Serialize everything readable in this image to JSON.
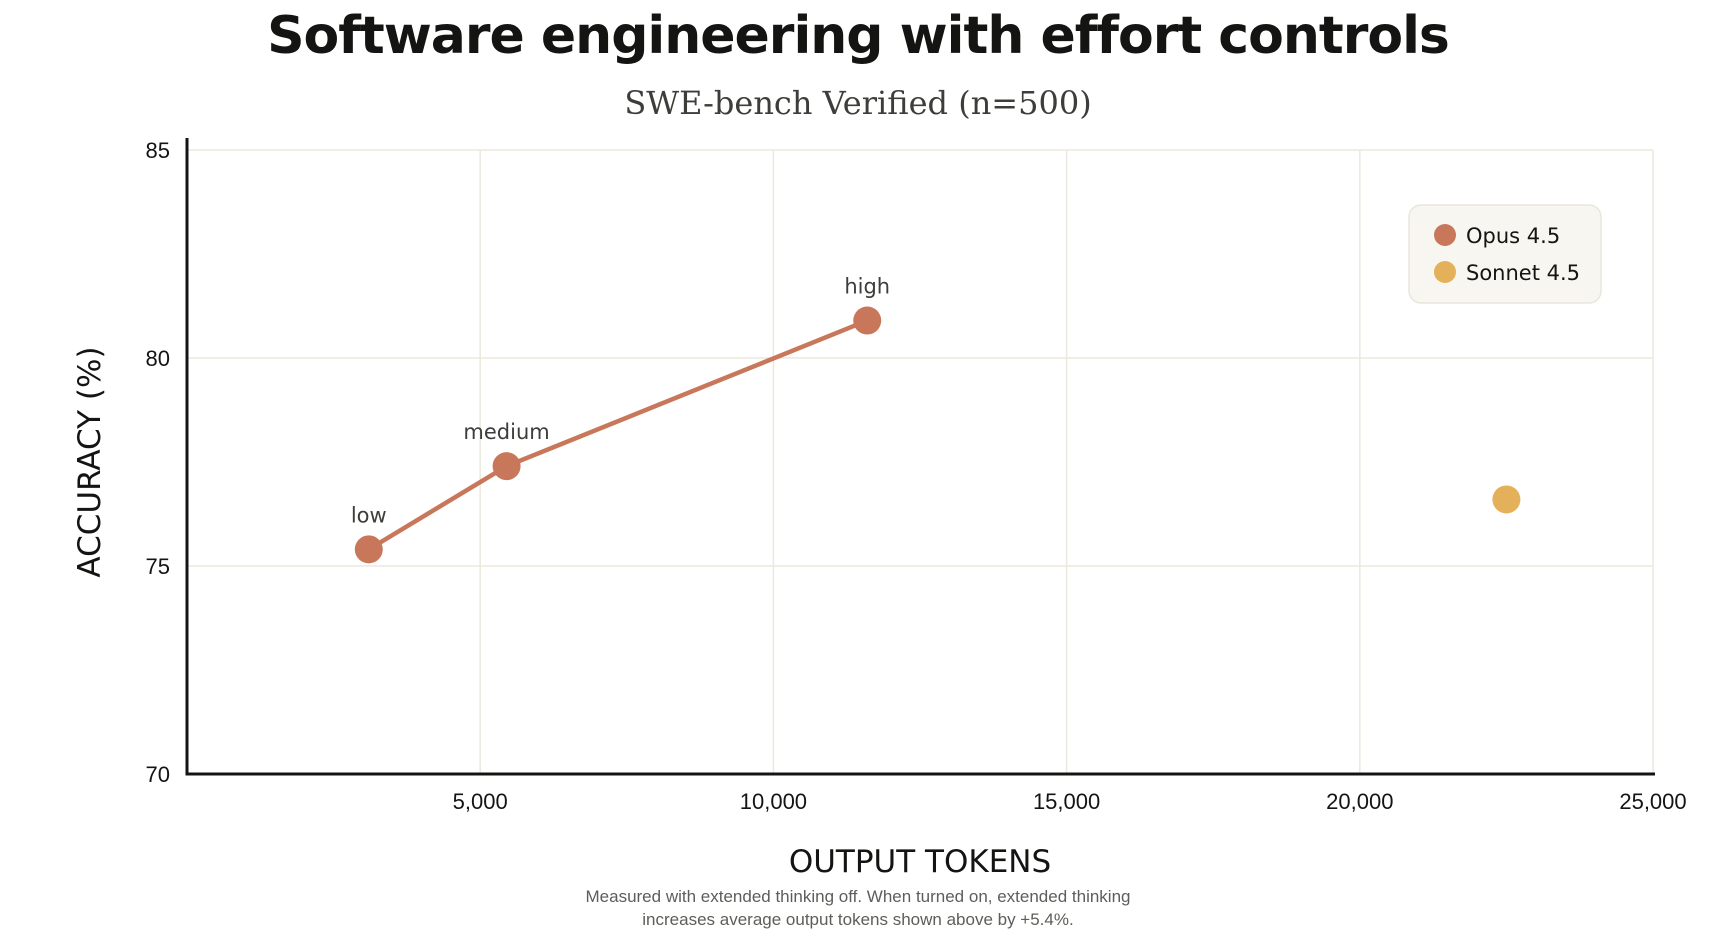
{
  "chart_data": {
    "type": "scatter",
    "title": "Software engineering with effort controls",
    "subtitle": "SWE-bench Verified (n=500)",
    "xlabel": "OUTPUT TOKENS",
    "ylabel": "ACCURACY (%)",
    "xlim": [
      0,
      25000
    ],
    "ylim": [
      70,
      85
    ],
    "xticks": [
      5000,
      10000,
      15000,
      20000,
      25000
    ],
    "xtick_labels": [
      "5,000",
      "10,000",
      "15,000",
      "20,000",
      "25,000"
    ],
    "yticks": [
      70,
      75,
      80,
      85
    ],
    "ytick_labels": [
      "70",
      "75",
      "80",
      "85"
    ],
    "grid": true,
    "legend_position": "top-right",
    "series": [
      {
        "name": "Opus 4.5",
        "color": "#c9775a",
        "connected": true,
        "points": [
          {
            "x": 3100,
            "y": 75.4,
            "label": "low"
          },
          {
            "x": 5450,
            "y": 77.4,
            "label": "medium"
          },
          {
            "x": 11600,
            "y": 80.9,
            "label": "high"
          }
        ]
      },
      {
        "name": "Sonnet 4.5",
        "color": "#e5b05a",
        "connected": false,
        "points": [
          {
            "x": 22500,
            "y": 76.6,
            "label": ""
          }
        ]
      }
    ],
    "footnote_lines": [
      "Measured with extended thinking off. When turned on, extended thinking",
      "increases average output tokens shown above by +5.4%."
    ]
  }
}
